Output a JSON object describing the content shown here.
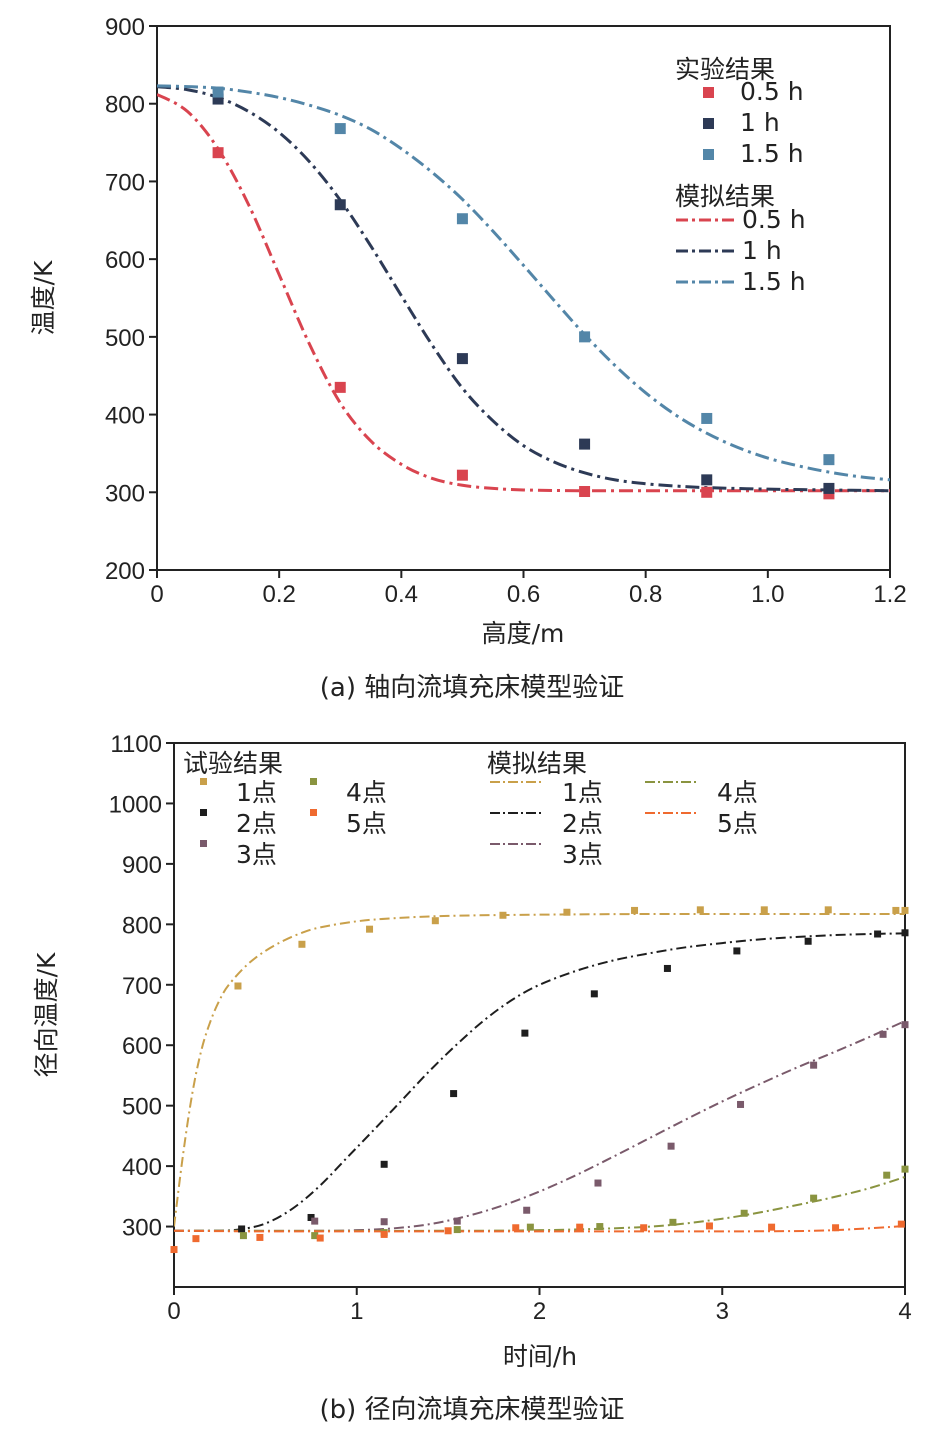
{
  "chart_data": [
    {
      "type": "line",
      "caption": "(a) 轴向流填充床模型验证",
      "xlabel": "高度/m",
      "ylabel": "温度/K",
      "xlim": [
        0,
        1.2
      ],
      "ylim": [
        200,
        900
      ],
      "xticks": [
        "0",
        "0.2",
        "0.4",
        "0.6",
        "0.8",
        "1.0",
        "1.2"
      ],
      "xtick_values": [
        0,
        0.2,
        0.4,
        0.6,
        0.8,
        1.0,
        1.2
      ],
      "yticks": [
        "200",
        "300",
        "400",
        "500",
        "600",
        "700",
        "800",
        "900"
      ],
      "ytick_values": [
        200,
        300,
        400,
        500,
        600,
        700,
        800,
        900
      ],
      "legend_placement": "top-right",
      "legend_group_exp": "实验结果",
      "legend_group_sim": "模拟结果",
      "experiment": [
        {
          "name": "0.5 h",
          "color": "#d9444f",
          "x": [
            0.1,
            0.3,
            0.5,
            0.7,
            0.9,
            1.1
          ],
          "y": [
            737,
            435,
            322,
            301,
            300,
            298
          ]
        },
        {
          "name": "1 h",
          "color": "#2d3a56",
          "x": [
            0.1,
            0.3,
            0.5,
            0.7,
            0.9,
            1.1
          ],
          "y": [
            806,
            670,
            472,
            362,
            316,
            305
          ]
        },
        {
          "name": "1.5 h",
          "color": "#5386a8",
          "x": [
            0.1,
            0.3,
            0.5,
            0.7,
            0.9,
            1.1
          ],
          "y": [
            815,
            768,
            652,
            500,
            395,
            342
          ]
        }
      ],
      "simulation": [
        {
          "name": "0.5 h",
          "color": "#d9444f",
          "x": [
            0,
            0.05,
            0.1,
            0.15,
            0.2,
            0.25,
            0.3,
            0.35,
            0.4,
            0.45,
            0.5,
            0.55,
            0.6,
            0.7,
            0.8,
            0.9,
            1.0,
            1.1,
            1.2
          ],
          "y": [
            812,
            790,
            742,
            670,
            580,
            490,
            415,
            366,
            336,
            318,
            309,
            305,
            303,
            302,
            302,
            302,
            302,
            302,
            302
          ]
        },
        {
          "name": "1 h",
          "color": "#2d3a56",
          "x": [
            0,
            0.05,
            0.1,
            0.15,
            0.2,
            0.25,
            0.3,
            0.35,
            0.4,
            0.45,
            0.5,
            0.55,
            0.6,
            0.65,
            0.7,
            0.75,
            0.8,
            0.85,
            0.9,
            1.0,
            1.1,
            1.2
          ],
          "y": [
            822,
            818,
            808,
            790,
            763,
            725,
            676,
            617,
            553,
            490,
            434,
            392,
            360,
            339,
            325,
            316,
            311,
            308,
            306,
            304,
            303,
            302
          ]
        },
        {
          "name": "1.5 h",
          "color": "#5386a8",
          "x": [
            0,
            0.05,
            0.1,
            0.15,
            0.2,
            0.25,
            0.3,
            0.35,
            0.4,
            0.45,
            0.5,
            0.55,
            0.6,
            0.65,
            0.7,
            0.75,
            0.8,
            0.85,
            0.9,
            0.95,
            1.0,
            1.05,
            1.1,
            1.15,
            1.2
          ],
          "y": [
            823,
            822,
            820,
            815,
            808,
            798,
            785,
            767,
            742,
            712,
            677,
            636,
            592,
            547,
            503,
            463,
            428,
            399,
            376,
            358,
            344,
            334,
            326,
            320,
            316
          ]
        }
      ]
    },
    {
      "type": "line",
      "caption": "(b) 径向流填充床模型验证",
      "xlabel": "时间/h",
      "ylabel": "径向温度/K",
      "xlim": [
        0,
        4
      ],
      "ylim": [
        200,
        1100
      ],
      "xticks": [
        "0",
        "1",
        "2",
        "3",
        "4"
      ],
      "xtick_values": [
        0,
        1,
        2,
        3,
        4
      ],
      "yticks": [
        "300",
        "400",
        "500",
        "600",
        "700",
        "800",
        "900",
        "1000",
        "1100"
      ],
      "ytick_values": [
        300,
        400,
        500,
        600,
        700,
        800,
        900,
        1000,
        1100
      ],
      "legend_placement": "top",
      "legend_group_exp": "试验结果",
      "legend_group_sim": "模拟结果",
      "experiment": [
        {
          "name": "1点",
          "color": "#c9a04a",
          "x": [
            0.35,
            0.7,
            1.07,
            1.43,
            1.8,
            2.15,
            2.52,
            2.88,
            3.23,
            3.58,
            3.95,
            4.0
          ],
          "y": [
            698,
            767,
            792,
            806,
            815,
            820,
            823,
            824,
            824,
            824,
            823,
            823
          ]
        },
        {
          "name": "2点",
          "color": "#1e1e1e",
          "x": [
            0.37,
            0.75,
            1.15,
            1.53,
            1.92,
            2.3,
            2.7,
            3.08,
            3.47,
            3.85,
            4.0
          ],
          "y": [
            296,
            315,
            403,
            520,
            620,
            685,
            727,
            756,
            772,
            784,
            786
          ]
        },
        {
          "name": "3点",
          "color": "#7a5a6b",
          "x": [
            0.77,
            1.15,
            1.55,
            1.93,
            2.32,
            2.72,
            3.1,
            3.5,
            3.88,
            4.0
          ],
          "y": [
            309,
            308,
            309,
            327,
            372,
            433,
            502,
            567,
            618,
            634
          ]
        },
        {
          "name": "4点",
          "color": "#8a9440",
          "x": [
            0.38,
            0.77,
            1.15,
            1.55,
            1.95,
            2.33,
            2.73,
            3.12,
            3.5,
            3.9,
            4.0
          ],
          "y": [
            285,
            285,
            290,
            295,
            299,
            300,
            307,
            322,
            347,
            385,
            395
          ]
        },
        {
          "name": "5点",
          "color": "#ef6a2f",
          "x": [
            0,
            0.12,
            0.47,
            0.8,
            1.15,
            1.5,
            1.87,
            2.22,
            2.57,
            2.93,
            3.27,
            3.62,
            3.98
          ],
          "y": [
            262,
            280,
            282,
            281,
            287,
            293,
            298,
            299,
            298,
            301,
            299,
            298,
            304
          ]
        }
      ],
      "simulation": [
        {
          "name": "1点",
          "color": "#c9a04a",
          "x": [
            0,
            0.05,
            0.1,
            0.15,
            0.2,
            0.25,
            0.3,
            0.4,
            0.5,
            0.6,
            0.7,
            0.8,
            1.0,
            1.2,
            1.5,
            2.0,
            2.5,
            3.0,
            3.5,
            4.0
          ],
          "y": [
            300,
            420,
            520,
            592,
            640,
            675,
            700,
            733,
            756,
            773,
            786,
            795,
            805,
            810,
            814,
            816,
            817,
            817,
            817,
            817
          ]
        },
        {
          "name": "2点",
          "color": "#1e1e1e",
          "x": [
            0,
            0.2,
            0.35,
            0.5,
            0.65,
            0.8,
            0.95,
            1.1,
            1.25,
            1.4,
            1.55,
            1.7,
            1.85,
            2.0,
            2.2,
            2.4,
            2.6,
            2.8,
            3.0,
            3.2,
            3.4,
            3.6,
            3.8,
            4.0
          ],
          "y": [
            293,
            293,
            295,
            305,
            330,
            368,
            415,
            462,
            510,
            558,
            602,
            642,
            675,
            700,
            723,
            740,
            752,
            762,
            769,
            775,
            779,
            782,
            784,
            785
          ]
        },
        {
          "name": "3点",
          "color": "#7a5a6b",
          "x": [
            0,
            0.8,
            1.0,
            1.2,
            1.4,
            1.6,
            1.8,
            2.0,
            2.2,
            2.4,
            2.6,
            2.8,
            3.0,
            3.2,
            3.4,
            3.6,
            3.8,
            4.0
          ],
          "y": [
            293,
            293,
            294,
            297,
            304,
            317,
            335,
            358,
            385,
            415,
            446,
            477,
            507,
            535,
            562,
            587,
            613,
            640
          ]
        },
        {
          "name": "4点",
          "color": "#8a9440",
          "x": [
            0,
            1.5,
            2.0,
            2.4,
            2.7,
            3.0,
            3.2,
            3.4,
            3.6,
            3.8,
            4.0
          ],
          "y": [
            293,
            293,
            294,
            297,
            302,
            313,
            323,
            335,
            348,
            363,
            382
          ]
        },
        {
          "name": "5点",
          "color": "#ef6a2f",
          "x": [
            0,
            0.5,
            1.0,
            1.5,
            2.0,
            2.5,
            3.0,
            3.5,
            3.8,
            4.0
          ],
          "y": [
            293,
            292,
            292,
            292,
            292,
            292,
            292,
            293,
            297,
            301
          ]
        }
      ]
    }
  ]
}
